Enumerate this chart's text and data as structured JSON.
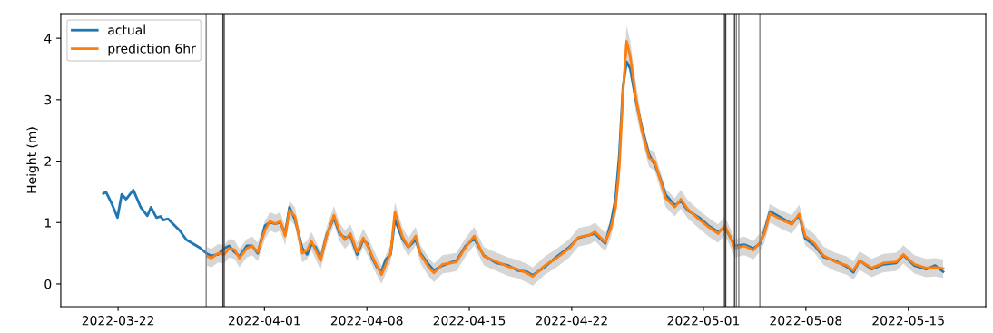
{
  "chart_data": {
    "type": "line",
    "ylabel": "Height (m)",
    "xlim": [
      "2022-03-18T02:00",
      "2022-05-20T07:00"
    ],
    "ylim": [
      -0.37,
      4.4
    ],
    "xticks": [
      "2022-03-22",
      "2022-04-01",
      "2022-04-08",
      "2022-04-15",
      "2022-04-22",
      "2022-05-01",
      "2022-05-08",
      "2022-05-15"
    ],
    "yticks": [
      0,
      1,
      2,
      3,
      4
    ],
    "grid": false,
    "legend": "top left",
    "line_style": "solid",
    "marker": "none",
    "ref_lines": [
      {
        "axis": "x",
        "value": "2022-03-28T00:30",
        "color": "#808080"
      },
      {
        "axis": "x",
        "value": "2022-03-29T04:00",
        "color": "#404040"
      },
      {
        "axis": "x",
        "value": "2022-03-29T06:00",
        "color": "#404040"
      },
      {
        "axis": "x",
        "value": "2022-05-02T10:30",
        "color": "#404040"
      },
      {
        "axis": "x",
        "value": "2022-05-02T12:30",
        "color": "#404040"
      },
      {
        "axis": "x",
        "value": "2022-05-03T03:00",
        "color": "#404040"
      },
      {
        "axis": "x",
        "value": "2022-05-03T06:00",
        "color": "#808080"
      },
      {
        "axis": "x",
        "value": "2022-05-03T10:00",
        "color": "#808080"
      },
      {
        "axis": "x",
        "value": "2022-05-04T20:30",
        "color": "#808080"
      }
    ],
    "series": [
      {
        "name": "actual",
        "color": "#1f77b4",
        "x": [
          "2022-03-21T00:00",
          "2022-03-21T04:00",
          "2022-03-21T14:00",
          "2022-03-21T23:00",
          "2022-03-22T06:00",
          "2022-03-22T13:00",
          "2022-03-23T01:00",
          "2022-03-23T13:00",
          "2022-03-24T00:00",
          "2022-03-24T06:00",
          "2022-03-24T15:00",
          "2022-03-24T22:00",
          "2022-03-25T02:00",
          "2022-03-25T10:00",
          "2022-03-25T20:00",
          "2022-03-26T05:00",
          "2022-03-26T16:00",
          "2022-03-27T04:00",
          "2022-03-27T14:00",
          "2022-03-28T02:00",
          "2022-03-28T09:00",
          "2022-03-28T20:00",
          "2022-03-29T06:00",
          "2022-03-29T14:00",
          "2022-03-29T23:00",
          "2022-03-30T07:00",
          "2022-03-30T19:00",
          "2022-03-31T04:00",
          "2022-03-31T13:00",
          "2022-04-01T01:00",
          "2022-04-01T09:00",
          "2022-04-01T18:00",
          "2022-04-02T02:00",
          "2022-04-02T10:00",
          "2022-04-02T17:00",
          "2022-04-03T02:00",
          "2022-04-03T14:00",
          "2022-04-03T22:00",
          "2022-04-04T05:00",
          "2022-04-04T12:00",
          "2022-04-04T20:00",
          "2022-04-05T06:00",
          "2022-04-05T18:00",
          "2022-04-06T03:00",
          "2022-04-06T12:00",
          "2022-04-06T21:00",
          "2022-04-07T08:00",
          "2022-04-07T18:00",
          "2022-04-08T01:00",
          "2022-04-08T09:00",
          "2022-04-08T16:00",
          "2022-04-09T00:00",
          "2022-04-09T07:00",
          "2022-04-09T15:00",
          "2022-04-09T22:00",
          "2022-04-10T10:00",
          "2022-04-10T20:00",
          "2022-04-11T08:00",
          "2022-04-11T16:00",
          "2022-04-12T05:00",
          "2022-04-12T14:00",
          "2022-04-13T04:00",
          "2022-04-13T18:00",
          "2022-04-14T03:00",
          "2022-04-14T18:00",
          "2022-04-15T08:00",
          "2022-04-16T00:00",
          "2022-04-16T21:00",
          "2022-04-17T16:00",
          "2022-04-18T07:00",
          "2022-04-18T22:00",
          "2022-04-19T08:00",
          "2022-04-20T04:00",
          "2022-04-20T23:00",
          "2022-04-21T20:00",
          "2022-04-22T11:00",
          "2022-04-23T06:00",
          "2022-04-23T14:00",
          "2022-04-24T07:00",
          "2022-04-24T16:00",
          "2022-04-25T00:00",
          "2022-04-25T06:00",
          "2022-04-25T12:00",
          "2022-04-25T18:00",
          "2022-04-26T00:00",
          "2022-04-26T09:00",
          "2022-04-26T19:00",
          "2022-04-27T07:00",
          "2022-04-27T16:00",
          "2022-04-28T01:00",
          "2022-04-28T10:00",
          "2022-04-29T01:00",
          "2022-04-29T11:00",
          "2022-04-29T22:00",
          "2022-04-30T17:00",
          "2022-05-01T08:00",
          "2022-05-02T00:00",
          "2022-05-02T11:00",
          "2022-05-03T04:00",
          "2022-05-03T19:00",
          "2022-05-04T10:00",
          "2022-05-04T21:00",
          "2022-05-05T04:00",
          "2022-05-05T13:00",
          "2022-05-06T07:00",
          "2022-05-07T01:00",
          "2022-05-07T13:00",
          "2022-05-07T23:00",
          "2022-05-08T14:00",
          "2022-05-09T05:00",
          "2022-05-10T00:00",
          "2022-05-10T19:00",
          "2022-05-11T06:00",
          "2022-05-11T16:00",
          "2022-05-12T12:00",
          "2022-05-13T07:00",
          "2022-05-14T04:00",
          "2022-05-14T16:00",
          "2022-05-15T10:00",
          "2022-05-16T05:00",
          "2022-05-16T20:00",
          "2022-05-17T09:00"
        ],
        "values": [
          1.47,
          1.5,
          1.3,
          1.08,
          1.46,
          1.38,
          1.53,
          1.25,
          1.11,
          1.25,
          1.08,
          1.1,
          1.04,
          1.06,
          0.96,
          0.87,
          0.72,
          0.65,
          0.59,
          0.49,
          0.46,
          0.48,
          0.58,
          0.62,
          0.52,
          0.45,
          0.62,
          0.62,
          0.5,
          0.95,
          1.0,
          0.98,
          1.0,
          0.82,
          1.25,
          1.05,
          0.58,
          0.48,
          0.65,
          0.6,
          0.4,
          0.8,
          1.08,
          0.82,
          0.75,
          0.78,
          0.48,
          0.72,
          0.65,
          0.42,
          0.28,
          0.2,
          0.4,
          0.48,
          1.05,
          0.74,
          0.6,
          0.72,
          0.5,
          0.32,
          0.22,
          0.3,
          0.35,
          0.38,
          0.62,
          0.74,
          0.46,
          0.34,
          0.3,
          0.22,
          0.2,
          0.14,
          0.28,
          0.44,
          0.6,
          0.75,
          0.8,
          0.82,
          0.66,
          0.98,
          1.4,
          2.1,
          3.2,
          3.62,
          3.5,
          3.0,
          2.55,
          2.1,
          1.95,
          1.72,
          1.45,
          1.28,
          1.35,
          1.2,
          1.08,
          0.95,
          0.85,
          0.92,
          0.62,
          0.64,
          0.58,
          0.66,
          0.86,
          1.18,
          1.08,
          0.98,
          1.12,
          0.74,
          0.63,
          0.44,
          0.38,
          0.28,
          0.19,
          0.38,
          0.24,
          0.32,
          0.34,
          0.47,
          0.3,
          0.24,
          0.3,
          0.2
        ]
      },
      {
        "name": "prediction 6hr",
        "color": "#ff7f0e",
        "x": [
          "2022-03-28T02:00",
          "2022-03-28T09:00",
          "2022-03-28T20:00",
          "2022-03-29T06:00",
          "2022-03-29T14:00",
          "2022-03-29T23:00",
          "2022-03-30T07:00",
          "2022-03-30T19:00",
          "2022-03-31T04:00",
          "2022-03-31T13:00",
          "2022-04-01T01:00",
          "2022-04-01T09:00",
          "2022-04-01T18:00",
          "2022-04-02T02:00",
          "2022-04-02T10:00",
          "2022-04-02T17:00",
          "2022-04-03T02:00",
          "2022-04-03T14:00",
          "2022-04-03T22:00",
          "2022-04-04T05:00",
          "2022-04-04T12:00",
          "2022-04-04T20:00",
          "2022-04-05T06:00",
          "2022-04-05T18:00",
          "2022-04-06T03:00",
          "2022-04-06T12:00",
          "2022-04-06T21:00",
          "2022-04-07T08:00",
          "2022-04-07T18:00",
          "2022-04-08T01:00",
          "2022-04-08T09:00",
          "2022-04-08T16:00",
          "2022-04-09T00:00",
          "2022-04-09T07:00",
          "2022-04-09T15:00",
          "2022-04-09T22:00",
          "2022-04-10T10:00",
          "2022-04-10T20:00",
          "2022-04-11T08:00",
          "2022-04-11T16:00",
          "2022-04-12T05:00",
          "2022-04-12T14:00",
          "2022-04-13T04:00",
          "2022-04-13T18:00",
          "2022-04-14T03:00",
          "2022-04-14T18:00",
          "2022-04-15T08:00",
          "2022-04-16T00:00",
          "2022-04-16T21:00",
          "2022-04-17T16:00",
          "2022-04-18T07:00",
          "2022-04-18T22:00",
          "2022-04-19T08:00",
          "2022-04-20T04:00",
          "2022-04-20T23:00",
          "2022-04-21T20:00",
          "2022-04-22T11:00",
          "2022-04-23T06:00",
          "2022-04-23T14:00",
          "2022-04-24T07:00",
          "2022-04-24T16:00",
          "2022-04-25T00:00",
          "2022-04-25T06:00",
          "2022-04-25T12:00",
          "2022-04-25T18:00",
          "2022-04-26T00:00",
          "2022-04-26T09:00",
          "2022-04-26T19:00",
          "2022-04-27T07:00",
          "2022-04-27T16:00",
          "2022-04-28T01:00",
          "2022-04-28T10:00",
          "2022-04-29T01:00",
          "2022-04-29T11:00",
          "2022-04-29T22:00",
          "2022-04-30T17:00",
          "2022-05-01T08:00",
          "2022-05-02T00:00",
          "2022-05-02T11:00",
          "2022-05-03T04:00",
          "2022-05-03T19:00",
          "2022-05-04T10:00",
          "2022-05-04T21:00",
          "2022-05-05T04:00",
          "2022-05-05T13:00",
          "2022-05-06T07:00",
          "2022-05-07T01:00",
          "2022-05-07T13:00",
          "2022-05-07T23:00",
          "2022-05-08T14:00",
          "2022-05-09T05:00",
          "2022-05-10T00:00",
          "2022-05-10T19:00",
          "2022-05-11T06:00",
          "2022-05-11T16:00",
          "2022-05-12T12:00",
          "2022-05-13T07:00",
          "2022-05-14T04:00",
          "2022-05-14T16:00",
          "2022-05-15T10:00",
          "2022-05-16T05:00",
          "2022-05-16T20:00",
          "2022-05-17T09:00"
        ],
        "values": [
          0.45,
          0.42,
          0.5,
          0.48,
          0.58,
          0.56,
          0.42,
          0.58,
          0.62,
          0.52,
          0.88,
          1.02,
          0.98,
          1.02,
          0.78,
          1.2,
          1.1,
          0.5,
          0.55,
          0.7,
          0.55,
          0.38,
          0.78,
          1.12,
          0.85,
          0.72,
          0.82,
          0.52,
          0.75,
          0.62,
          0.45,
          0.3,
          0.15,
          0.32,
          0.5,
          1.18,
          0.78,
          0.6,
          0.78,
          0.48,
          0.28,
          0.18,
          0.32,
          0.34,
          0.36,
          0.6,
          0.78,
          0.45,
          0.36,
          0.28,
          0.24,
          0.18,
          0.12,
          0.3,
          0.42,
          0.58,
          0.76,
          0.8,
          0.85,
          0.68,
          0.9,
          1.25,
          1.9,
          3.1,
          3.95,
          3.7,
          3.05,
          2.5,
          2.05,
          2.0,
          1.7,
          1.4,
          1.25,
          1.38,
          1.22,
          1.05,
          0.93,
          0.82,
          0.95,
          0.58,
          0.62,
          0.55,
          0.68,
          0.82,
          1.15,
          1.05,
          0.97,
          1.14,
          0.78,
          0.66,
          0.46,
          0.36,
          0.3,
          0.22,
          0.38,
          0.26,
          0.34,
          0.36,
          0.48,
          0.32,
          0.26,
          0.27,
          0.25
        ],
        "lower": [
          0.3,
          0.27,
          0.35,
          0.33,
          0.43,
          0.41,
          0.27,
          0.43,
          0.47,
          0.37,
          0.73,
          0.87,
          0.83,
          0.87,
          0.63,
          1.05,
          0.95,
          0.35,
          0.4,
          0.55,
          0.4,
          0.23,
          0.63,
          0.97,
          0.7,
          0.57,
          0.67,
          0.37,
          0.6,
          0.47,
          0.3,
          0.15,
          0.0,
          0.17,
          0.35,
          1.03,
          0.63,
          0.45,
          0.63,
          0.33,
          0.13,
          0.03,
          0.17,
          0.19,
          0.21,
          0.45,
          0.63,
          0.3,
          0.21,
          0.13,
          0.09,
          0.03,
          -0.03,
          0.15,
          0.27,
          0.43,
          0.61,
          0.65,
          0.7,
          0.53,
          0.75,
          1.1,
          1.65,
          2.85,
          3.7,
          3.45,
          2.8,
          2.35,
          1.9,
          1.85,
          1.55,
          1.25,
          1.1,
          1.23,
          1.07,
          0.9,
          0.78,
          0.67,
          0.8,
          0.43,
          0.47,
          0.4,
          0.53,
          0.67,
          1.0,
          0.9,
          0.82,
          0.99,
          0.63,
          0.51,
          0.31,
          0.21,
          0.15,
          0.07,
          0.23,
          0.11,
          0.19,
          0.21,
          0.33,
          0.17,
          0.11,
          0.12,
          0.1
        ],
        "upper": [
          0.6,
          0.57,
          0.65,
          0.63,
          0.73,
          0.71,
          0.57,
          0.73,
          0.77,
          0.67,
          1.03,
          1.17,
          1.13,
          1.17,
          0.93,
          1.35,
          1.25,
          0.65,
          0.7,
          0.85,
          0.7,
          0.53,
          0.93,
          1.27,
          1.0,
          0.87,
          0.97,
          0.67,
          0.9,
          0.77,
          0.6,
          0.45,
          0.3,
          0.47,
          0.65,
          1.33,
          0.93,
          0.75,
          0.93,
          0.63,
          0.43,
          0.33,
          0.47,
          0.49,
          0.51,
          0.75,
          0.93,
          0.6,
          0.51,
          0.43,
          0.39,
          0.33,
          0.27,
          0.45,
          0.57,
          0.73,
          0.91,
          0.95,
          1.0,
          0.83,
          1.05,
          1.4,
          2.15,
          3.35,
          4.2,
          3.95,
          3.3,
          2.65,
          2.2,
          2.15,
          1.85,
          1.55,
          1.4,
          1.53,
          1.37,
          1.2,
          1.08,
          0.97,
          1.1,
          0.73,
          0.77,
          0.7,
          0.83,
          0.97,
          1.3,
          1.2,
          1.12,
          1.29,
          0.93,
          0.81,
          0.61,
          0.51,
          0.45,
          0.37,
          0.53,
          0.41,
          0.49,
          0.51,
          0.63,
          0.47,
          0.41,
          0.42,
          0.4
        ]
      }
    ]
  }
}
